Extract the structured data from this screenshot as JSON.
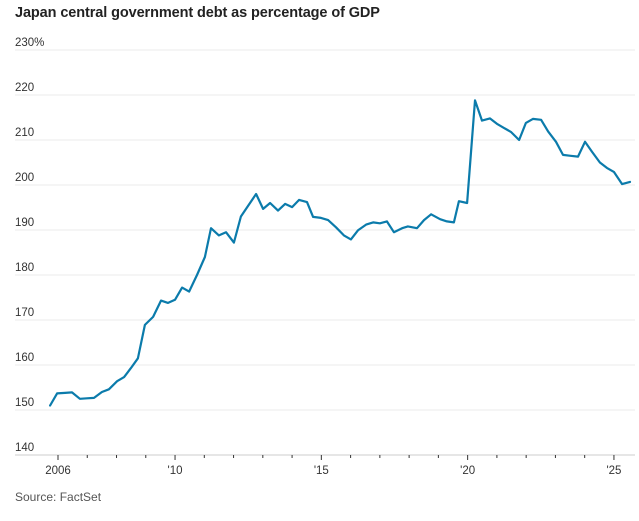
{
  "title": "Japan central government debt as percentage of GDP",
  "source": "Source: FactSet",
  "colors": {
    "line": "#0b7bab",
    "grid": "#ebebeb",
    "axis": "#dddddd",
    "tick": "#333333"
  },
  "chart_data": {
    "type": "line",
    "title": "Japan central government debt as percentage of GDP",
    "xlabel": "",
    "ylabel": "",
    "unit_suffix": "%",
    "ylim": [
      140,
      230
    ],
    "xlim": [
      2005.4,
      2026.0
    ],
    "grid": true,
    "legend": "none",
    "y_ticks": [
      {
        "value": 230,
        "label": "230%"
      },
      {
        "value": 220,
        "label": "220"
      },
      {
        "value": 210,
        "label": "210"
      },
      {
        "value": 200,
        "label": "200"
      },
      {
        "value": 190,
        "label": "190"
      },
      {
        "value": 180,
        "label": "180"
      },
      {
        "value": 170,
        "label": "170"
      },
      {
        "value": 160,
        "label": "160"
      },
      {
        "value": 150,
        "label": "150"
      },
      {
        "value": 140,
        "label": "140"
      }
    ],
    "x_ticks": [
      {
        "value": 2006,
        "label": "2006"
      },
      {
        "value": 2007,
        "label": ""
      },
      {
        "value": 2008,
        "label": ""
      },
      {
        "value": 2009,
        "label": ""
      },
      {
        "value": 2010,
        "label": "'10"
      },
      {
        "value": 2011,
        "label": ""
      },
      {
        "value": 2012,
        "label": ""
      },
      {
        "value": 2013,
        "label": ""
      },
      {
        "value": 2014,
        "label": ""
      },
      {
        "value": 2015,
        "label": "'15"
      },
      {
        "value": 2016,
        "label": ""
      },
      {
        "value": 2017,
        "label": ""
      },
      {
        "value": 2018,
        "label": ""
      },
      {
        "value": 2019,
        "label": ""
      },
      {
        "value": 2020,
        "label": "'20"
      },
      {
        "value": 2021,
        "label": ""
      },
      {
        "value": 2022,
        "label": ""
      },
      {
        "value": 2023,
        "label": ""
      },
      {
        "value": 2024,
        "label": ""
      },
      {
        "value": 2025,
        "label": "'25"
      }
    ],
    "series": [
      {
        "name": "Debt-to-GDP",
        "points": [
          [
            2005.73,
            151.0
          ],
          [
            2005.97,
            153.7
          ],
          [
            2006.24,
            153.8
          ],
          [
            2006.48,
            153.9
          ],
          [
            2006.75,
            152.5
          ],
          [
            2006.99,
            152.6
          ],
          [
            2007.23,
            152.7
          ],
          [
            2007.5,
            154.0
          ],
          [
            2007.74,
            154.6
          ],
          [
            2008.02,
            156.4
          ],
          [
            2008.26,
            157.3
          ],
          [
            2008.49,
            159.3
          ],
          [
            2008.73,
            161.5
          ],
          [
            2008.97,
            168.9
          ],
          [
            2009.25,
            170.7
          ],
          [
            2009.52,
            174.3
          ],
          [
            2009.76,
            173.8
          ],
          [
            2010.0,
            174.5
          ],
          [
            2010.24,
            177.2
          ],
          [
            2010.48,
            176.3
          ],
          [
            2010.75,
            180.0
          ],
          [
            2011.02,
            184.0
          ],
          [
            2011.23,
            190.4
          ],
          [
            2011.5,
            188.8
          ],
          [
            2011.74,
            189.5
          ],
          [
            2012.01,
            187.2
          ],
          [
            2012.25,
            193.0
          ],
          [
            2012.49,
            195.3
          ],
          [
            2012.77,
            198.0
          ],
          [
            2013.01,
            194.7
          ],
          [
            2013.25,
            196.0
          ],
          [
            2013.52,
            194.3
          ],
          [
            2013.76,
            195.8
          ],
          [
            2014.0,
            195.1
          ],
          [
            2014.24,
            196.7
          ],
          [
            2014.51,
            196.2
          ],
          [
            2014.72,
            192.9
          ],
          [
            2014.99,
            192.7
          ],
          [
            2015.23,
            192.2
          ],
          [
            2015.5,
            190.6
          ],
          [
            2015.77,
            188.8
          ],
          [
            2016.01,
            187.9
          ],
          [
            2016.25,
            189.9
          ],
          [
            2016.53,
            191.2
          ],
          [
            2016.77,
            191.7
          ],
          [
            2017.0,
            191.5
          ],
          [
            2017.24,
            191.9
          ],
          [
            2017.48,
            189.5
          ],
          [
            2017.76,
            190.4
          ],
          [
            2017.96,
            190.8
          ],
          [
            2018.27,
            190.4
          ],
          [
            2018.51,
            192.2
          ],
          [
            2018.75,
            193.5
          ],
          [
            2019.06,
            192.4
          ],
          [
            2019.29,
            191.9
          ],
          [
            2019.53,
            191.7
          ],
          [
            2019.7,
            196.4
          ],
          [
            2019.98,
            196.0
          ],
          [
            2020.25,
            218.8
          ],
          [
            2020.49,
            214.3
          ],
          [
            2020.76,
            214.8
          ],
          [
            2021.0,
            213.6
          ],
          [
            2021.24,
            212.7
          ],
          [
            2021.48,
            211.8
          ],
          [
            2021.76,
            210.0
          ],
          [
            2021.99,
            213.8
          ],
          [
            2022.23,
            214.7
          ],
          [
            2022.51,
            214.5
          ],
          [
            2022.75,
            211.9
          ],
          [
            2023.02,
            209.6
          ],
          [
            2023.26,
            206.7
          ],
          [
            2023.52,
            206.5
          ],
          [
            2023.77,
            206.3
          ],
          [
            2024.01,
            209.6
          ],
          [
            2024.25,
            207.4
          ],
          [
            2024.52,
            205.0
          ],
          [
            2024.76,
            203.8
          ],
          [
            2025.0,
            202.9
          ],
          [
            2025.28,
            200.2
          ],
          [
            2025.55,
            200.7
          ]
        ]
      }
    ]
  }
}
